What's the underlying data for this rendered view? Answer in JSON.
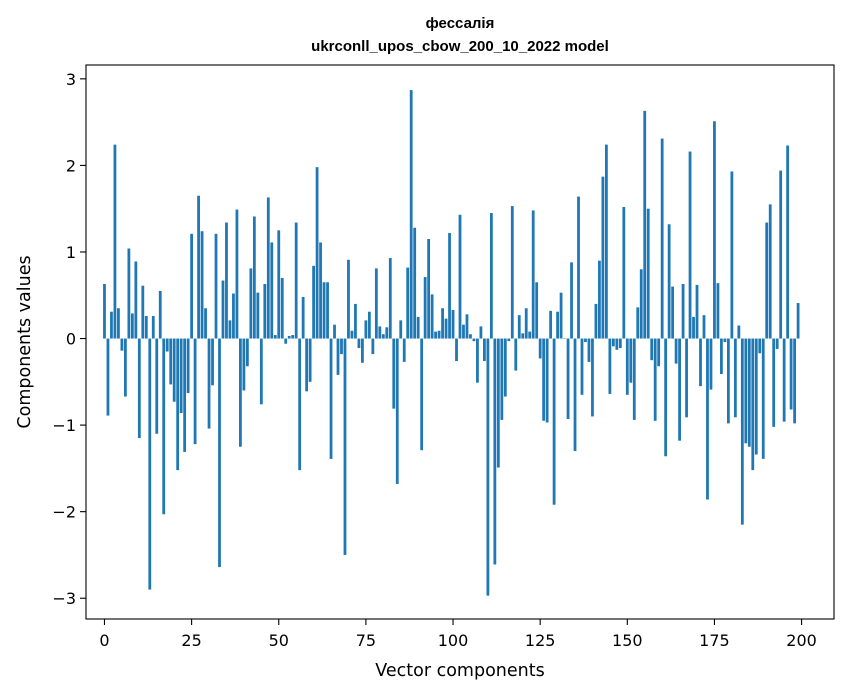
{
  "chart_data": {
    "type": "bar",
    "title_lines": [
      "фессалія",
      "ukrconll_upos_cbow_200_10_2022 model"
    ],
    "xlabel": "Vector components",
    "ylabel": "Components values",
    "x_ticks": [
      0,
      25,
      50,
      75,
      100,
      125,
      150,
      175,
      200
    ],
    "y_ticks": [
      -3,
      -2,
      -1,
      0,
      1,
      2,
      3
    ],
    "y_tick_labels": [
      "−3",
      "−2",
      "−1",
      "0",
      "1",
      "2",
      "3"
    ],
    "xlim": [
      -5.3,
      209.3
    ],
    "ylim": [
      -3.24,
      3.16
    ],
    "bar_color": "#1f77b4",
    "grid": false,
    "values": [
      0.63,
      -0.89,
      0.31,
      2.24,
      0.35,
      -0.14,
      -0.67,
      1.04,
      0.29,
      0.89,
      -1.15,
      0.61,
      0.26,
      -2.9,
      0.26,
      -1.1,
      0.55,
      -2.03,
      -0.15,
      -0.53,
      -0.73,
      -1.52,
      -0.86,
      -1.31,
      -0.63,
      1.21,
      -1.22,
      1.65,
      1.24,
      0.35,
      -1.04,
      -0.54,
      1.21,
      -2.64,
      0.67,
      1.34,
      0.21,
      0.52,
      1.49,
      -1.25,
      -0.6,
      -0.32,
      0.81,
      1.41,
      0.53,
      -0.76,
      0.63,
      1.63,
      1.11,
      0.04,
      1.25,
      0.7,
      -0.06,
      0.03,
      0.04,
      1.34,
      -1.52,
      0.48,
      -0.61,
      -0.5,
      0.84,
      1.98,
      1.11,
      0.65,
      0.65,
      -1.39,
      0.16,
      -0.42,
      -0.18,
      -2.5,
      0.91,
      0.09,
      0.4,
      -0.11,
      -0.28,
      0.21,
      0.31,
      -0.18,
      0.81,
      0.14,
      0.05,
      0.13,
      0.93,
      -0.81,
      -1.68,
      0.21,
      -0.27,
      0.82,
      2.87,
      1.28,
      0.25,
      -1.29,
      0.71,
      1.15,
      0.51,
      0.08,
      0.09,
      0.35,
      0.23,
      1.22,
      0.33,
      -0.26,
      1.43,
      0.16,
      0.28,
      0.05,
      -0.03,
      -0.51,
      0.14,
      -0.26,
      -2.97,
      1.45,
      -2.61,
      -1.49,
      -0.94,
      -0.67,
      -0.03,
      1.53,
      -0.37,
      0.27,
      0.06,
      0.35,
      0.08,
      1.48,
      0.65,
      -0.23,
      -0.95,
      -0.97,
      0.32,
      -1.92,
      0.31,
      0.53,
      0.0,
      -0.93,
      0.88,
      -1.3,
      1.64,
      -0.65,
      -0.04,
      -0.27,
      -0.9,
      0.4,
      0.9,
      1.87,
      2.24,
      -0.64,
      -0.09,
      -0.13,
      -0.11,
      1.52,
      -0.65,
      -0.51,
      -0.94,
      0.36,
      0.8,
      2.63,
      1.5,
      -0.25,
      -0.95,
      -0.32,
      2.31,
      -1.36,
      1.32,
      0.6,
      -0.29,
      -1.18,
      0.63,
      -0.91,
      2.16,
      0.25,
      0.62,
      -0.55,
      0.27,
      -1.86,
      -0.59,
      2.51,
      0.64,
      -0.41,
      -0.04,
      -0.98,
      1.93,
      -0.91,
      0.15,
      -2.15,
      -1.21,
      -1.25,
      -1.52,
      -1.34,
      -0.17,
      -1.39,
      1.34,
      1.55,
      -1.02,
      -0.12,
      1.94,
      -0.96,
      2.23,
      -0.82,
      -0.98,
      0.41
    ]
  }
}
